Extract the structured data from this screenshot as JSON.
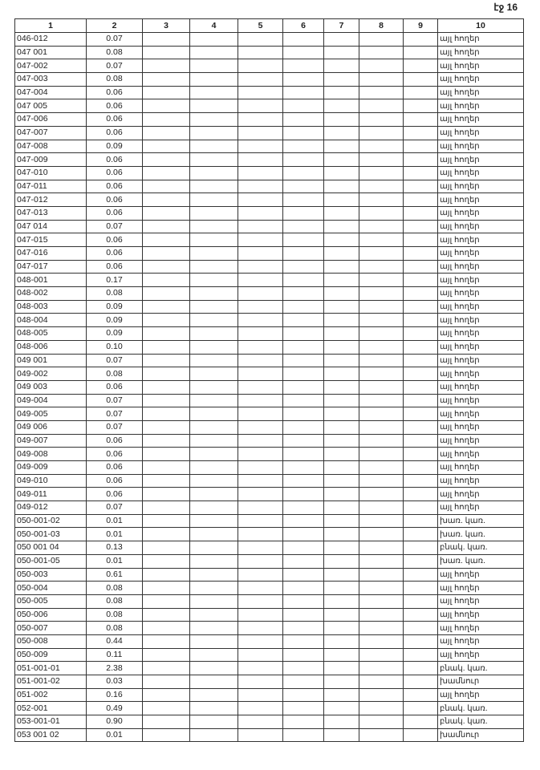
{
  "page_label": "էջ 16",
  "columns": [
    "1",
    "2",
    "3",
    "4",
    "5",
    "6",
    "7",
    "8",
    "9",
    "10"
  ],
  "rows": [
    [
      "046-012",
      "0.07",
      "այլ հողեր"
    ],
    [
      "047 001",
      "0.08",
      "այլ հողեր"
    ],
    [
      "047-002",
      "0.07",
      "այլ հողեր"
    ],
    [
      "047-003",
      "0.08",
      "այլ հողեր"
    ],
    [
      "047-004",
      "0.06",
      "այլ հողեր"
    ],
    [
      "047 005",
      "0.06",
      "այլ հողեր"
    ],
    [
      "047-006",
      "0.06",
      "այլ հողեր"
    ],
    [
      "047-007",
      "0.06",
      "այլ հողեր"
    ],
    [
      "047-008",
      "0.09",
      "այլ հողեր"
    ],
    [
      "047-009",
      "0.06",
      "այլ հողեր"
    ],
    [
      "047-010",
      "0.06",
      "այլ հողեր"
    ],
    [
      "047-011",
      "0.06",
      "այլ հողեր"
    ],
    [
      "047-012",
      "0.06",
      "այլ հողեր"
    ],
    [
      "047-013",
      "0.06",
      "այլ հողեր"
    ],
    [
      "047 014",
      "0.07",
      "այլ հողեր"
    ],
    [
      "047-015",
      "0.06",
      "այլ հողեր"
    ],
    [
      "047-016",
      "0.06",
      "այլ հողեր"
    ],
    [
      "047-017",
      "0.06",
      "այլ հողեր"
    ],
    [
      "048-001",
      "0.17",
      "այլ հողեր"
    ],
    [
      "048-002",
      "0.08",
      "այլ հողեր"
    ],
    [
      "048-003",
      "0.09",
      "այլ հողեր"
    ],
    [
      "048-004",
      "0.09",
      "այլ հողեր"
    ],
    [
      "048-005",
      "0.09",
      "այլ հողեր"
    ],
    [
      "048-006",
      "0.10",
      "այլ հողեր"
    ],
    [
      "049 001",
      "0.07",
      "այլ հողեր"
    ],
    [
      "049-002",
      "0.08",
      "այլ հողեր"
    ],
    [
      "049 003",
      "0.06",
      "այլ հողեր"
    ],
    [
      "049-004",
      "0.07",
      "այլ հողեր"
    ],
    [
      "049-005",
      "0.07",
      "այլ հողեր"
    ],
    [
      "049 006",
      "0.07",
      "այլ հողեր"
    ],
    [
      "049-007",
      "0.06",
      "այլ հողեր"
    ],
    [
      "049-008",
      "0.06",
      "այլ հողեր"
    ],
    [
      "049-009",
      "0.06",
      "այլ հողեր"
    ],
    [
      "049-010",
      "0.06",
      "այլ հողեր"
    ],
    [
      "049-011",
      "0.06",
      "այլ հողեր"
    ],
    [
      "049-012",
      "0.07",
      "այլ հողեր"
    ],
    [
      "050-001-02",
      "0.01",
      "խառ. կառ."
    ],
    [
      "050-001-03",
      "0.01",
      "խառ. կառ."
    ],
    [
      "050 001 04",
      "0.13",
      "բնակ. կառ."
    ],
    [
      "050-001-05",
      "0.01",
      "խառ. կառ."
    ],
    [
      "050-003",
      "0.61",
      "այլ հողեր"
    ],
    [
      "050-004",
      "0.08",
      "այլ հողեր"
    ],
    [
      "050-005",
      "0.08",
      "այլ հողեր"
    ],
    [
      "050-006",
      "0.08",
      "այլ հողեր"
    ],
    [
      "050-007",
      "0.08",
      "այլ հողեր"
    ],
    [
      "050-008",
      "0.44",
      "այլ հողեր"
    ],
    [
      "050-009",
      "0.11",
      "այլ հողեր"
    ],
    [
      "051-001-01",
      "2.38",
      "բնակ. կառ."
    ],
    [
      "051-001-02",
      "0.03",
      "խամնուր"
    ],
    [
      "051-002",
      "0.16",
      "այլ հողեր"
    ],
    [
      "052-001",
      "0.49",
      "բնակ. կառ."
    ],
    [
      "053-001-01",
      "0.90",
      "բնակ. կառ."
    ],
    [
      "053 001 02",
      "0.01",
      "խամնուր"
    ]
  ]
}
